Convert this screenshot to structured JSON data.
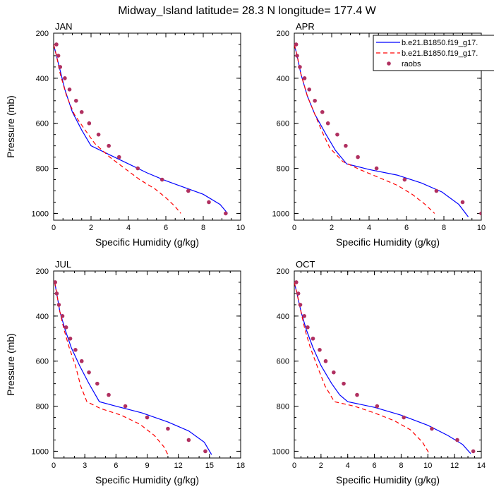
{
  "figure": {
    "title": "Midway_Island  latitude= 28.3 N longitude= 177.4 W"
  },
  "chart_data": [
    {
      "type": "line",
      "panel": "JAN",
      "xlabel": "Specific Humidity (g/kg)",
      "ylabel": "Pressure (mb)",
      "xlim": [
        0,
        10
      ],
      "ylim": [
        1030,
        200
      ],
      "xticks": [
        0,
        2,
        4,
        6,
        8,
        10
      ],
      "yticks": [
        200,
        400,
        600,
        800,
        1000
      ],
      "series": [
        {
          "name": "b.e21.B1850.f19_g17.",
          "style": "solid",
          "color": "#0000ff",
          "x": [
            0.0,
            0.15,
            0.3,
            0.6,
            1.0,
            1.5,
            2.0,
            3.0,
            4.0,
            5.0,
            6.0,
            7.0,
            8.0,
            8.9,
            9.3
          ],
          "y": [
            250,
            300,
            350,
            450,
            550,
            630,
            700,
            740,
            780,
            820,
            855,
            885,
            915,
            960,
            1000
          ]
        },
        {
          "name": "b.e21.B1850.f19_g17.",
          "style": "dashed",
          "color": "#ff0000",
          "x": [
            0.0,
            0.15,
            0.35,
            0.7,
            1.1,
            1.6,
            2.2,
            3.0,
            3.8,
            4.6,
            5.4,
            6.0,
            6.5,
            6.8
          ],
          "y": [
            250,
            300,
            380,
            480,
            560,
            620,
            690,
            750,
            800,
            850,
            890,
            930,
            970,
            1000
          ]
        },
        {
          "name": "raobs",
          "style": "markers",
          "color": "#b03060",
          "x": [
            0.15,
            0.25,
            0.35,
            0.6,
            0.85,
            1.2,
            1.5,
            1.9,
            2.4,
            2.95,
            3.5,
            4.5,
            5.8,
            7.2,
            8.3,
            9.2
          ],
          "y": [
            250,
            300,
            350,
            400,
            450,
            500,
            550,
            600,
            650,
            700,
            750,
            800,
            850,
            900,
            950,
            1000
          ]
        }
      ]
    },
    {
      "type": "line",
      "panel": "APR",
      "xlabel": "Specific Humidity (g/kg)",
      "ylabel": "",
      "xlim": [
        0,
        10
      ],
      "ylim": [
        1030,
        200
      ],
      "xticks": [
        0,
        2,
        4,
        6,
        8,
        10
      ],
      "yticks": [
        200,
        400,
        600,
        800,
        1000
      ],
      "series": [
        {
          "name": "b.e21.B1850.f19_g17.",
          "style": "solid",
          "color": "#0000ff",
          "x": [
            0.0,
            0.15,
            0.35,
            0.7,
            1.1,
            1.7,
            2.2,
            2.8,
            4.0,
            5.5,
            6.8,
            7.9,
            8.8,
            9.3
          ],
          "y": [
            250,
            300,
            380,
            480,
            560,
            650,
            720,
            780,
            805,
            830,
            865,
            905,
            960,
            1015
          ]
        },
        {
          "name": "b.e21.B1850.f19_g17.",
          "style": "dashed",
          "color": "#ff0000",
          "x": [
            0.0,
            0.15,
            0.35,
            0.7,
            1.1,
            1.5,
            1.9,
            2.6,
            3.5,
            4.5,
            5.5,
            6.3,
            7.0,
            7.5
          ],
          "y": [
            250,
            300,
            380,
            480,
            560,
            640,
            710,
            770,
            805,
            840,
            875,
            915,
            960,
            1000
          ]
        },
        {
          "name": "raobs",
          "style": "markers",
          "color": "#b03060",
          "x": [
            0.1,
            0.15,
            0.3,
            0.55,
            0.8,
            1.1,
            1.5,
            1.8,
            2.3,
            2.75,
            3.4,
            4.4,
            5.9,
            7.6,
            9.0,
            10.0
          ],
          "y": [
            250,
            300,
            350,
            400,
            450,
            500,
            550,
            600,
            650,
            700,
            750,
            800,
            850,
            900,
            950,
            1000
          ]
        }
      ]
    },
    {
      "type": "line",
      "panel": "JUL",
      "xlabel": "Specific Humidity (g/kg)",
      "ylabel": "Pressure (mb)",
      "xlim": [
        0,
        18
      ],
      "ylim": [
        1030,
        200
      ],
      "xticks": [
        0,
        3,
        6,
        9,
        12,
        15,
        18
      ],
      "yticks": [
        200,
        400,
        600,
        800,
        1000
      ],
      "series": [
        {
          "name": "b.e21.B1850.f19_g17.",
          "style": "solid",
          "color": "#0000ff",
          "x": [
            0.1,
            0.3,
            0.6,
            1.1,
            1.7,
            2.5,
            3.4,
            4.4,
            6.0,
            8.5,
            11.0,
            13.0,
            14.5,
            15.2
          ],
          "y": [
            250,
            300,
            380,
            460,
            540,
            620,
            700,
            780,
            800,
            830,
            870,
            910,
            960,
            1015
          ]
        },
        {
          "name": "b.e21.B1850.f19_g17.",
          "style": "dashed",
          "color": "#ff0000",
          "x": [
            0.1,
            0.3,
            0.6,
            1.0,
            1.5,
            2.1,
            2.6,
            3.2,
            4.5,
            6.5,
            8.3,
            9.7,
            10.6,
            11.0
          ],
          "y": [
            250,
            300,
            380,
            460,
            540,
            620,
            710,
            780,
            810,
            840,
            880,
            930,
            980,
            1015
          ]
        },
        {
          "name": "raobs",
          "style": "markers",
          "color": "#b03060",
          "x": [
            0.15,
            0.3,
            0.5,
            0.85,
            1.2,
            1.6,
            2.1,
            2.7,
            3.4,
            4.2,
            5.3,
            6.9,
            9.0,
            11.0,
            13.0,
            14.6
          ],
          "y": [
            250,
            300,
            350,
            400,
            450,
            500,
            550,
            600,
            650,
            700,
            750,
            800,
            850,
            900,
            950,
            1000
          ]
        }
      ]
    },
    {
      "type": "line",
      "panel": "OCT",
      "xlabel": "Specific Humidity (g/kg)",
      "ylabel": "",
      "xlim": [
        0,
        14
      ],
      "ylim": [
        1030,
        200
      ],
      "xticks": [
        0,
        2,
        4,
        6,
        8,
        10,
        12,
        14
      ],
      "yticks": [
        200,
        400,
        600,
        800,
        1000
      ],
      "series": [
        {
          "name": "b.e21.B1850.f19_g17.",
          "style": "solid",
          "color": "#0000ff",
          "x": [
            0.0,
            0.2,
            0.5,
            0.9,
            1.4,
            2.0,
            2.8,
            3.4,
            4.0,
            6.0,
            8.0,
            10.0,
            11.5,
            12.6,
            13.2
          ],
          "y": [
            250,
            300,
            380,
            460,
            540,
            620,
            700,
            750,
            780,
            805,
            840,
            885,
            930,
            970,
            1010
          ]
        },
        {
          "name": "b.e21.B1850.f19_g17.",
          "style": "dashed",
          "color": "#ff0000",
          "x": [
            0.0,
            0.2,
            0.5,
            0.8,
            1.2,
            1.7,
            2.3,
            3.0,
            4.5,
            6.0,
            7.5,
            8.7,
            9.6,
            10.1
          ],
          "y": [
            250,
            300,
            380,
            460,
            540,
            620,
            710,
            780,
            800,
            830,
            865,
            905,
            960,
            1010
          ]
        },
        {
          "name": "raobs",
          "style": "markers",
          "color": "#b03060",
          "x": [
            0.15,
            0.3,
            0.45,
            0.75,
            1.0,
            1.4,
            1.9,
            2.35,
            2.95,
            3.7,
            4.7,
            6.2,
            8.2,
            10.3,
            12.2,
            13.4
          ],
          "y": [
            250,
            300,
            350,
            400,
            450,
            500,
            550,
            600,
            650,
            700,
            750,
            800,
            850,
            900,
            950,
            1000
          ]
        }
      ]
    }
  ],
  "legend": {
    "entries": [
      {
        "label": "b.e21.B1850.f19_g17.",
        "style": "solid",
        "color": "#0000ff"
      },
      {
        "label": "b.e21.B1850.f19_g17.",
        "style": "dashed",
        "color": "#ff0000"
      },
      {
        "label": "raobs",
        "style": "markers",
        "color": "#b03060"
      }
    ]
  }
}
